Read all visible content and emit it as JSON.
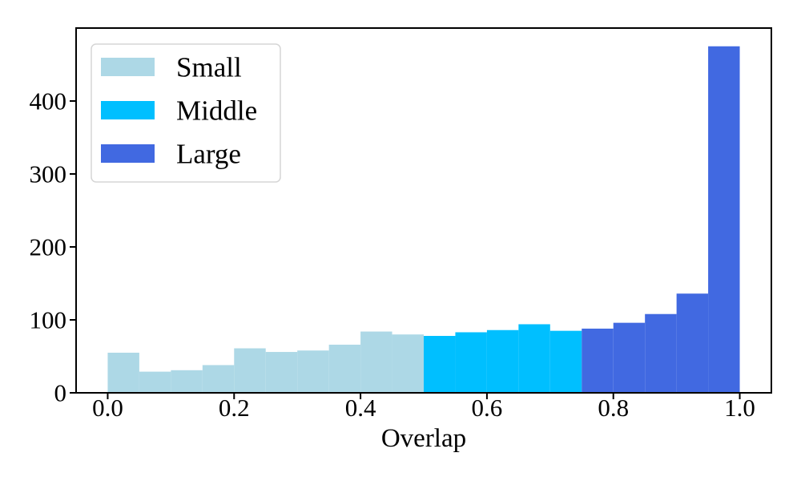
{
  "figure": {
    "background": "#ffffff",
    "axis_color": "#000000",
    "legend_border_color": "#d5d5d5",
    "legend_fill": "#ffffff"
  },
  "chart_data": {
    "type": "bar",
    "subtype": "histogram",
    "title": "",
    "xlabel": "Overlap",
    "ylabel": "",
    "xlim": [
      -0.05,
      1.05
    ],
    "ylim": [
      0,
      500
    ],
    "grid": false,
    "legend_position": "upper-left",
    "x_tick_values": [
      0.0,
      0.2,
      0.4,
      0.6,
      0.8,
      1.0
    ],
    "x_tick_labels": [
      "0.0",
      "0.2",
      "0.4",
      "0.6",
      "0.8",
      "1.0"
    ],
    "y_tick_values": [
      0,
      100,
      200,
      300,
      400
    ],
    "y_tick_labels": [
      "0",
      "100",
      "200",
      "300",
      "400"
    ],
    "bin_start": 0.0,
    "bin_width": 0.05,
    "series": [
      {
        "name": "Small",
        "color": "#ADD8E6",
        "bin_range": [
          0.0,
          0.5
        ],
        "values": [
          55,
          29,
          31,
          38,
          61,
          56,
          58,
          66,
          84,
          80
        ]
      },
      {
        "name": "Middle",
        "color": "#00BFFF",
        "bin_range": [
          0.5,
          0.75
        ],
        "values": [
          78,
          83,
          86,
          94,
          85
        ]
      },
      {
        "name": "Large",
        "color": "#4169E1",
        "bin_range": [
          0.75,
          1.0
        ],
        "values": [
          88,
          96,
          108,
          136,
          475
        ]
      }
    ]
  }
}
